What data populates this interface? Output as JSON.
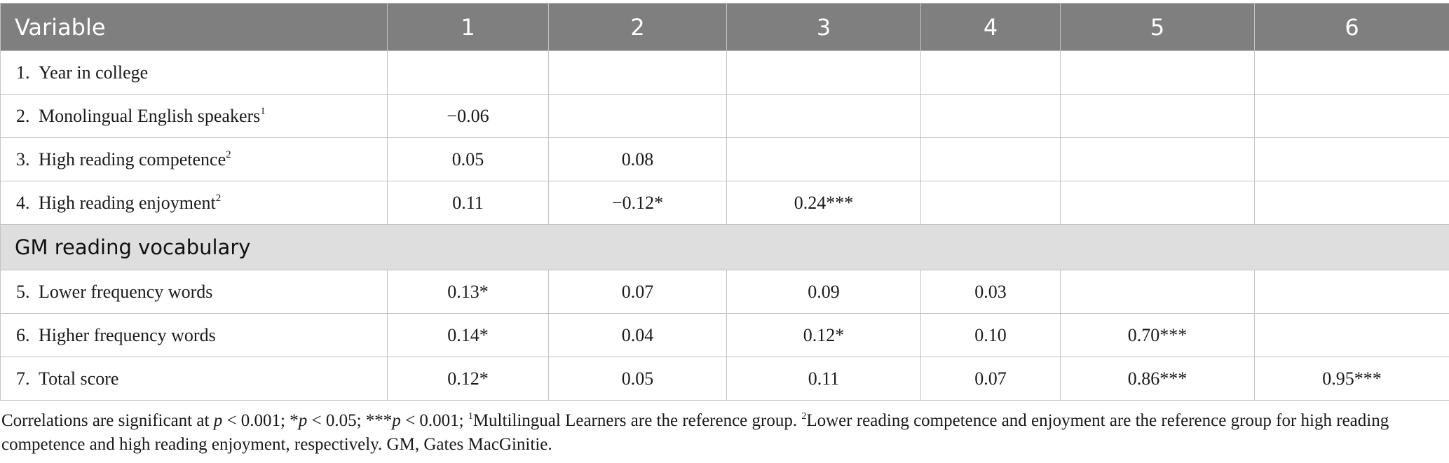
{
  "table": {
    "columns": [
      "Variable",
      "1",
      "2",
      "3",
      "4",
      "5",
      "6"
    ],
    "rows": [
      {
        "num": "1.",
        "label": "Year in college",
        "sup": "",
        "values": [
          "",
          "",
          "",
          "",
          "",
          ""
        ]
      },
      {
        "num": "2.",
        "label": "Monolingual English speakers",
        "sup": "1",
        "values": [
          "−0.06",
          "",
          "",
          "",
          "",
          ""
        ]
      },
      {
        "num": "3.",
        "label": "High reading competence",
        "sup": "2",
        "values": [
          "0.05",
          "0.08",
          "",
          "",
          "",
          ""
        ]
      },
      {
        "num": "4.",
        "label": "High reading enjoyment",
        "sup": "2",
        "values": [
          "0.11",
          "−0.12*",
          "0.24***",
          "",
          "",
          ""
        ]
      }
    ],
    "section_label": "GM reading vocabulary",
    "rows_section": [
      {
        "num": "5.",
        "label": "Lower frequency words",
        "sup": "",
        "values": [
          "0.13*",
          "0.07",
          "0.09",
          "0.03",
          "",
          ""
        ]
      },
      {
        "num": "6.",
        "label": "Higher frequency words",
        "sup": "",
        "values": [
          "0.14*",
          "0.04",
          "0.12*",
          "0.10",
          "0.70***",
          ""
        ]
      },
      {
        "num": "7.",
        "label": "Total score",
        "sup": "",
        "values": [
          "0.12*",
          "0.05",
          "0.11",
          "0.07",
          "0.86***",
          "0.95***"
        ]
      }
    ]
  },
  "footnote": {
    "p1": "Correlations are significant at ",
    "p_sym": "p",
    "p2": " < 0.001; *",
    "p3": " < 0.05; ***",
    "p4": " < 0.001; ",
    "sup1": "1",
    "p5": "Multilingual Learners are the reference group. ",
    "sup2": "2",
    "p6": "Lower reading competence and enjoyment are the reference group for high reading competence and high reading enjoyment, respectively. GM, Gates MacGinitie."
  }
}
